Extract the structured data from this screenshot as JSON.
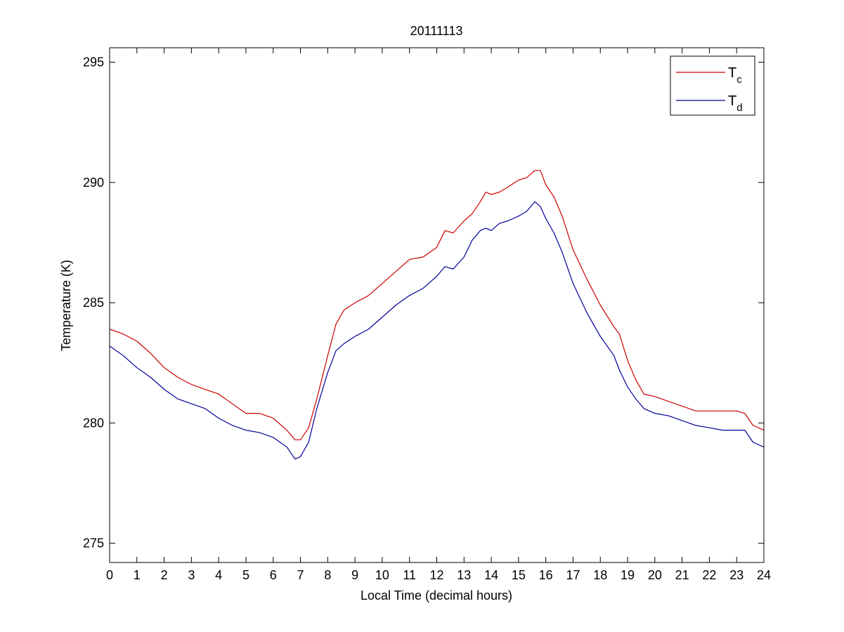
{
  "chart_data": {
    "type": "line",
    "title": "20111113",
    "xlabel": "Local Time (decimal hours)",
    "ylabel": "Temperature (K)",
    "xlim": [
      0,
      24
    ],
    "ylim": [
      274.2,
      295.6
    ],
    "xticks": [
      0,
      1,
      2,
      3,
      4,
      5,
      6,
      7,
      8,
      9,
      10,
      11,
      12,
      13,
      14,
      15,
      16,
      17,
      18,
      19,
      20,
      21,
      22,
      23,
      24
    ],
    "yticks": [
      275,
      280,
      285,
      290,
      295
    ],
    "grid": false,
    "legend_position": "top-right",
    "series": [
      {
        "name": "T",
        "subscript": "c",
        "color": "#cc0000",
        "x": [
          0,
          0.5,
          1,
          1.5,
          2,
          2.5,
          3,
          3.5,
          4,
          4.5,
          5,
          5.5,
          6,
          6.5,
          6.8,
          7,
          7.3,
          7.6,
          8,
          8.3,
          8.6,
          9,
          9.5,
          10,
          10.5,
          11,
          11.5,
          12,
          12.3,
          12.6,
          13,
          13.3,
          13.6,
          13.8,
          14,
          14.3,
          14.6,
          15,
          15.3,
          15.6,
          15.8,
          16,
          16.3,
          16.6,
          17,
          17.5,
          18,
          18.5,
          18.7,
          19,
          19.3,
          19.6,
          20,
          20.5,
          21,
          21.5,
          22,
          22.5,
          23,
          23.3,
          23.6,
          24
        ],
        "y": [
          283.9,
          283.7,
          283.4,
          282.9,
          282.3,
          281.9,
          281.6,
          281.4,
          281.2,
          280.8,
          280.4,
          280.4,
          280.2,
          279.7,
          279.3,
          279.3,
          279.8,
          281.0,
          282.8,
          284.1,
          284.7,
          285.0,
          285.3,
          285.8,
          286.3,
          286.8,
          286.9,
          287.3,
          288.0,
          287.9,
          288.4,
          288.7,
          289.2,
          289.6,
          289.5,
          289.6,
          289.8,
          290.1,
          290.2,
          290.5,
          290.5,
          289.9,
          289.4,
          288.6,
          287.2,
          286.0,
          284.9,
          284.0,
          283.7,
          282.6,
          281.8,
          281.2,
          281.1,
          280.9,
          280.7,
          280.5,
          280.5,
          280.5,
          280.5,
          280.4,
          279.9,
          279.7
        ]
      },
      {
        "name": "T",
        "subscript": "d",
        "color": "#000099",
        "x": [
          0,
          0.5,
          1,
          1.5,
          2,
          2.5,
          3,
          3.5,
          4,
          4.5,
          5,
          5.5,
          6,
          6.5,
          6.8,
          7,
          7.3,
          7.6,
          8,
          8.3,
          8.6,
          9,
          9.5,
          10,
          10.5,
          11,
          11.5,
          12,
          12.3,
          12.6,
          13,
          13.3,
          13.6,
          13.8,
          14,
          14.3,
          14.6,
          15,
          15.3,
          15.6,
          15.8,
          16,
          16.3,
          16.6,
          17,
          17.5,
          18,
          18.5,
          18.7,
          19,
          19.3,
          19.6,
          20,
          20.5,
          21,
          21.5,
          22,
          22.5,
          23,
          23.3,
          23.6,
          24
        ],
        "y": [
          283.2,
          282.8,
          282.3,
          281.9,
          281.4,
          281.0,
          280.8,
          280.6,
          280.2,
          279.9,
          279.7,
          279.6,
          279.4,
          279.0,
          278.5,
          278.6,
          279.2,
          280.6,
          282.1,
          283.0,
          283.3,
          283.6,
          283.9,
          284.4,
          284.9,
          285.3,
          285.6,
          286.1,
          286.5,
          286.4,
          286.9,
          287.6,
          288.0,
          288.1,
          288.0,
          288.3,
          288.4,
          288.6,
          288.8,
          289.2,
          289.0,
          288.5,
          287.9,
          287.1,
          285.8,
          284.6,
          283.6,
          282.8,
          282.2,
          281.5,
          281.0,
          280.6,
          280.4,
          280.3,
          280.1,
          279.9,
          279.8,
          279.7,
          279.7,
          279.7,
          279.2,
          279.0
        ]
      }
    ]
  }
}
